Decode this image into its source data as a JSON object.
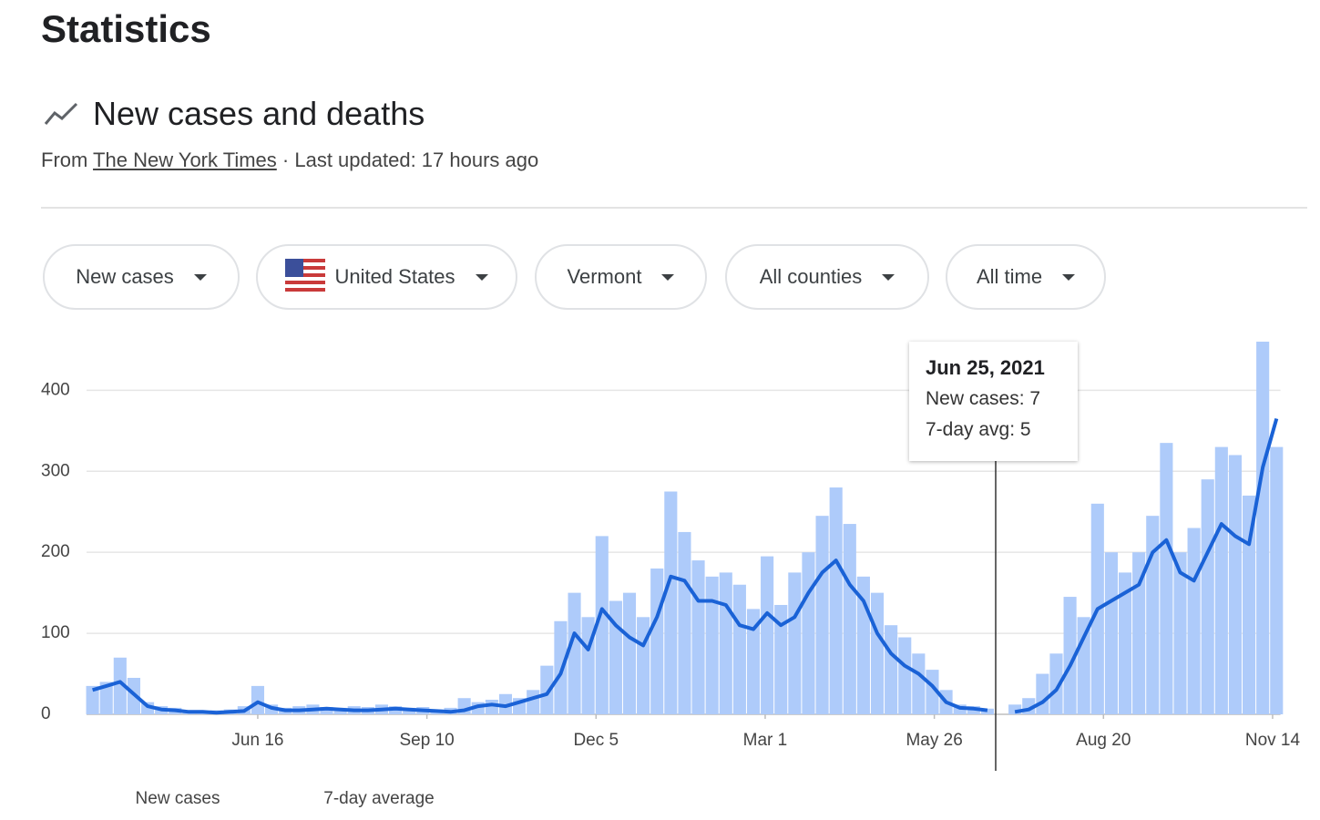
{
  "header": {
    "title": "Statistics"
  },
  "section": {
    "title": "New cases and deaths",
    "source_prefix": "From",
    "source_link": "The New York Times",
    "updated": "· Last updated: 17 hours ago"
  },
  "filters": [
    "New cases",
    "United States",
    "Vermont",
    "All counties",
    "All time"
  ],
  "tooltip": {
    "date": "Jun 25, 2021",
    "lines": [
      "New cases: 7",
      "7-day avg: 5"
    ]
  },
  "chart_data": {
    "type": "bar",
    "x": [
      0,
      7,
      14,
      21,
      28,
      35,
      42,
      49,
      56,
      63,
      70,
      77,
      84,
      91,
      98,
      105,
      112,
      119,
      126,
      133,
      140,
      147,
      154,
      161,
      168,
      175,
      182,
      189,
      196,
      203,
      210,
      217,
      224,
      231,
      238,
      245,
      252,
      259,
      266,
      273,
      280,
      287,
      294,
      301,
      308,
      315,
      322,
      329,
      336,
      343,
      350,
      357,
      364,
      371,
      378,
      385,
      392,
      399,
      406,
      413,
      420,
      427,
      434,
      441,
      448,
      455,
      462,
      469,
      476,
      483,
      490,
      497,
      504,
      511,
      518,
      525,
      532,
      539,
      546,
      553,
      560,
      567,
      574,
      581,
      588,
      595,
      602
    ],
    "series": [
      {
        "name": "New cases",
        "type": "bar",
        "color": "#aecbfa",
        "values": [
          35,
          40,
          70,
          45,
          15,
          10,
          8,
          5,
          4,
          5,
          6,
          10,
          35,
          12,
          8,
          10,
          12,
          9,
          8,
          10,
          9,
          12,
          10,
          8,
          9,
          6,
          8,
          20,
          15,
          18,
          25,
          20,
          30,
          60,
          115,
          150,
          120,
          220,
          140,
          150,
          120,
          180,
          275,
          225,
          190,
          170,
          175,
          160,
          130,
          195,
          135,
          175,
          200,
          245,
          280,
          235,
          170,
          150,
          110,
          95,
          75,
          55,
          30,
          12,
          10,
          7,
          null,
          12,
          20,
          50,
          75,
          145,
          120,
          260,
          200,
          175,
          200,
          245,
          335,
          200,
          230,
          290,
          330,
          320,
          270,
          460,
          330
        ]
      },
      {
        "name": "7-day average",
        "type": "line",
        "color": "#1a62d6",
        "values": [
          30,
          35,
          40,
          25,
          10,
          6,
          5,
          3,
          3,
          2,
          3,
          4,
          15,
          8,
          5,
          5,
          6,
          7,
          6,
          5,
          5,
          6,
          7,
          6,
          5,
          4,
          3,
          5,
          10,
          12,
          10,
          15,
          20,
          25,
          50,
          100,
          80,
          130,
          110,
          95,
          85,
          120,
          170,
          165,
          140,
          140,
          135,
          110,
          105,
          125,
          110,
          120,
          150,
          175,
          190,
          160,
          140,
          100,
          75,
          60,
          50,
          35,
          15,
          8,
          7,
          5,
          null,
          3,
          6,
          15,
          30,
          60,
          95,
          130,
          140,
          150,
          160,
          200,
          215,
          175,
          165,
          200,
          235,
          220,
          210,
          305,
          365
        ]
      }
    ],
    "xlim": [
      0,
      604
    ],
    "xticks": [
      {
        "value": 84,
        "label": "Jun 16"
      },
      {
        "value": 170,
        "label": "Sep 10"
      },
      {
        "value": 256,
        "label": "Dec 5"
      },
      {
        "value": 342,
        "label": "Mar 1"
      },
      {
        "value": 428,
        "label": "May 26"
      },
      {
        "value": 514,
        "label": "Aug 20"
      },
      {
        "value": 600,
        "label": "Nov 14"
      }
    ],
    "ylim": [
      0,
      460
    ],
    "yticks": [
      0,
      100,
      200,
      300,
      400
    ],
    "grid": true
  }
}
